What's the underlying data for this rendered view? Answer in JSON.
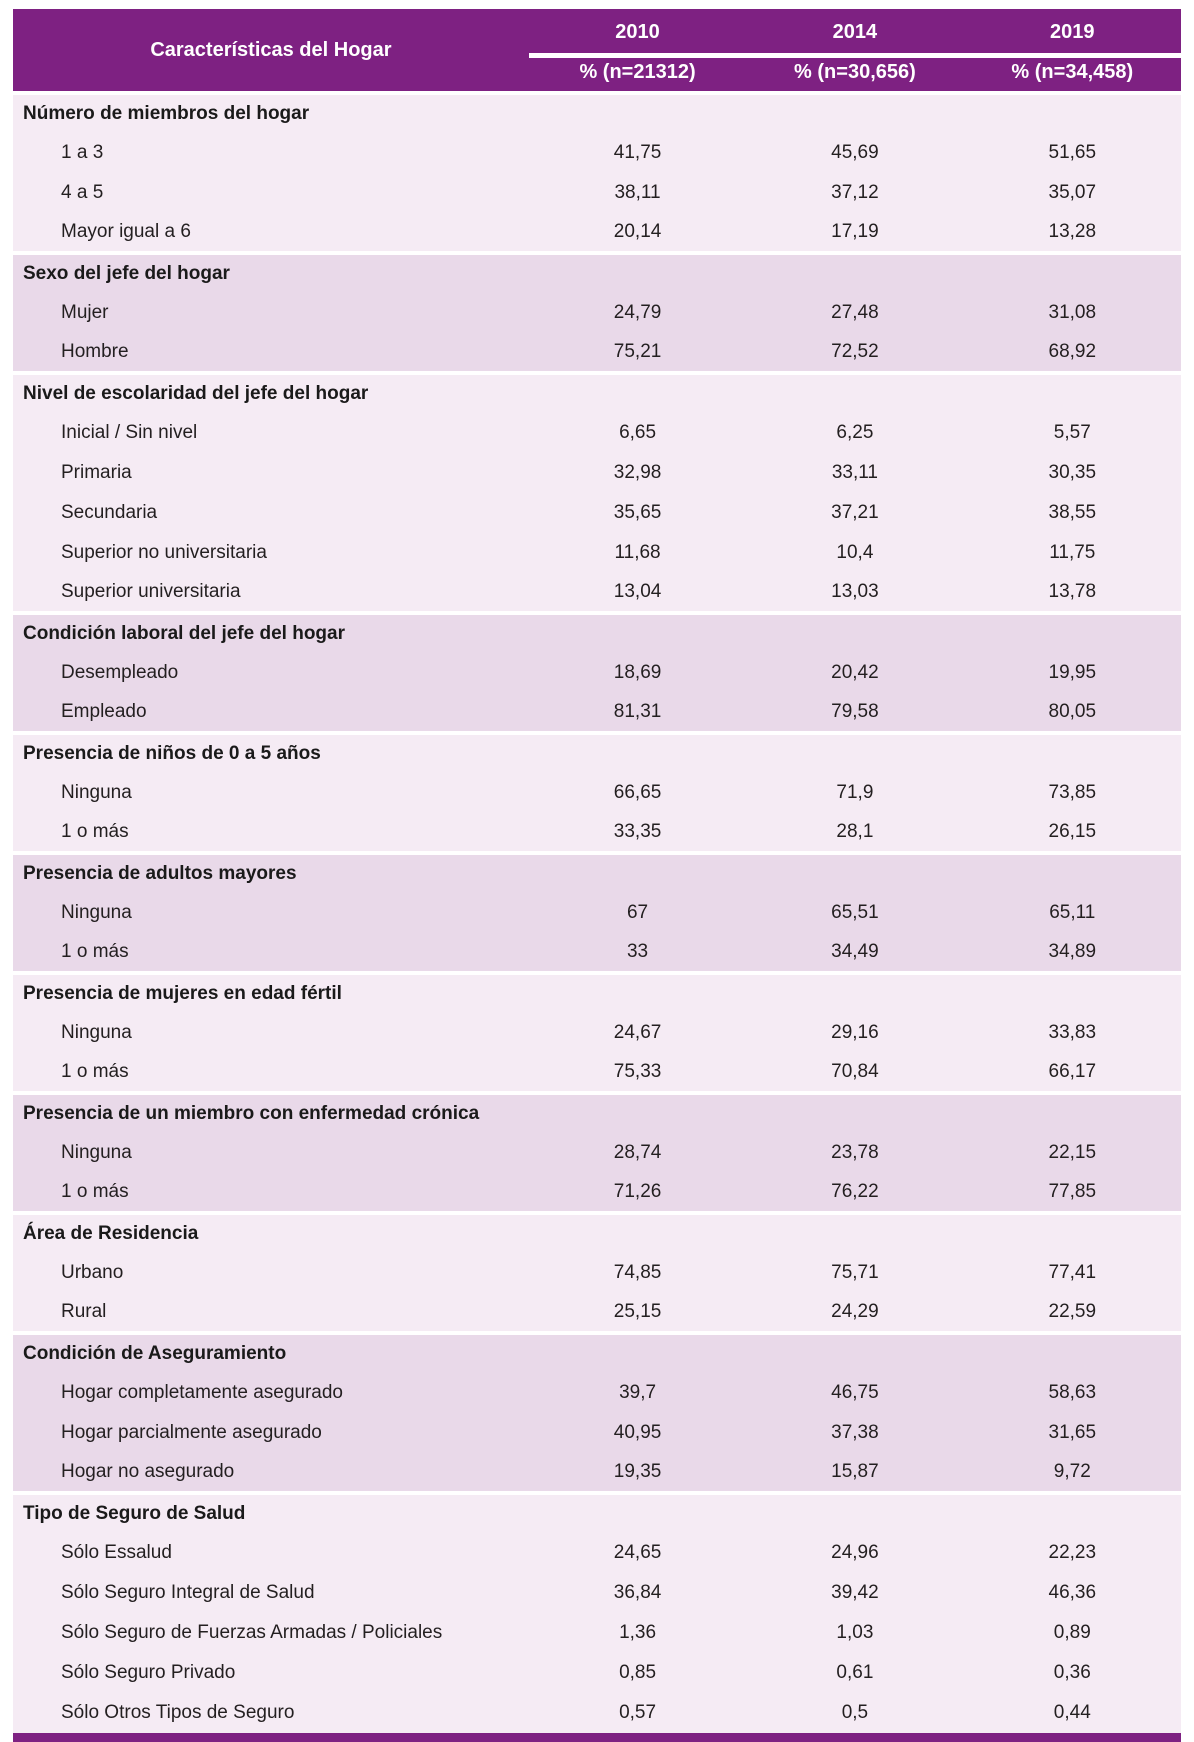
{
  "table": {
    "header": {
      "label": "Características del Hogar",
      "years": [
        "2010",
        "2014",
        "2019"
      ],
      "subheaders": [
        "% (n=21312)",
        "% (n=30,656)",
        "% (n=34,458)"
      ]
    },
    "sections": [
      {
        "title": "Número de miembros del hogar",
        "rows": [
          {
            "label": "1 a 3",
            "values": [
              "41,75",
              "45,69",
              "51,65"
            ]
          },
          {
            "label": "4 a 5",
            "values": [
              "38,11",
              "37,12",
              "35,07"
            ]
          },
          {
            "label": "Mayor igual a 6",
            "values": [
              "20,14",
              "17,19",
              "13,28"
            ]
          }
        ]
      },
      {
        "title": "Sexo del jefe del hogar",
        "rows": [
          {
            "label": "Mujer",
            "values": [
              "24,79",
              "27,48",
              "31,08"
            ]
          },
          {
            "label": "Hombre",
            "values": [
              "75,21",
              "72,52",
              "68,92"
            ]
          }
        ]
      },
      {
        "title": "Nivel de escolaridad del jefe del hogar",
        "rows": [
          {
            "label": "Inicial / Sin nivel",
            "values": [
              "6,65",
              "6,25",
              "5,57"
            ]
          },
          {
            "label": "Primaria",
            "values": [
              "32,98",
              "33,11",
              "30,35"
            ]
          },
          {
            "label": "Secundaria",
            "values": [
              "35,65",
              "37,21",
              "38,55"
            ]
          },
          {
            "label": "Superior no universitaria",
            "values": [
              "11,68",
              "10,4",
              "11,75"
            ]
          },
          {
            "label": "Superior universitaria",
            "values": [
              "13,04",
              "13,03",
              "13,78"
            ]
          }
        ]
      },
      {
        "title": "Condición laboral del jefe del hogar",
        "rows": [
          {
            "label": "Desempleado",
            "values": [
              "18,69",
              "20,42",
              "19,95"
            ]
          },
          {
            "label": "Empleado",
            "values": [
              "81,31",
              "79,58",
              "80,05"
            ]
          }
        ]
      },
      {
        "title": "Presencia de niños de 0 a 5 años",
        "rows": [
          {
            "label": "Ninguna",
            "values": [
              "66,65",
              "71,9",
              "73,85"
            ]
          },
          {
            "label": "1 o más",
            "values": [
              "33,35",
              "28,1",
              "26,15"
            ]
          }
        ]
      },
      {
        "title": "Presencia de adultos mayores",
        "rows": [
          {
            "label": "Ninguna",
            "values": [
              "67",
              "65,51",
              "65,11"
            ]
          },
          {
            "label": "1 o más",
            "values": [
              "33",
              "34,49",
              "34,89"
            ]
          }
        ]
      },
      {
        "title": "Presencia de mujeres en edad fértil",
        "rows": [
          {
            "label": "Ninguna",
            "values": [
              "24,67",
              "29,16",
              "33,83"
            ]
          },
          {
            "label": "1 o más",
            "values": [
              "75,33",
              "70,84",
              "66,17"
            ]
          }
        ]
      },
      {
        "title": "Presencia de un miembro con enfermedad crónica",
        "rows": [
          {
            "label": "Ninguna",
            "values": [
              "28,74",
              "23,78",
              "22,15"
            ]
          },
          {
            "label": "1 o más",
            "values": [
              "71,26",
              "76,22",
              "77,85"
            ]
          }
        ]
      },
      {
        "title": "Área de Residencia",
        "rows": [
          {
            "label": "Urbano",
            "values": [
              "74,85",
              "75,71",
              "77,41"
            ]
          },
          {
            "label": "Rural",
            "values": [
              "25,15",
              "24,29",
              "22,59"
            ]
          }
        ]
      },
      {
        "title": "Condición de Aseguramiento",
        "rows": [
          {
            "label": "Hogar completamente asegurado",
            "values": [
              "39,7",
              "46,75",
              "58,63"
            ]
          },
          {
            "label": "Hogar parcialmente asegurado",
            "values": [
              "40,95",
              "37,38",
              "31,65"
            ]
          },
          {
            "label": "Hogar no asegurado",
            "values": [
              "19,35",
              "15,87",
              "9,72"
            ]
          }
        ]
      },
      {
        "title": "Tipo de Seguro de Salud",
        "rows": [
          {
            "label": "Sólo Essalud",
            "values": [
              "24,65",
              "24,96",
              "22,23"
            ]
          },
          {
            "label": "Sólo Seguro Integral de Salud",
            "values": [
              "36,84",
              "39,42",
              "46,36"
            ]
          },
          {
            "label": "Sólo Seguro de Fuerzas Armadas / Policiales",
            "values": [
              "1,36",
              "1,03",
              "0,89"
            ]
          },
          {
            "label": "Sólo Seguro Privado",
            "values": [
              "0,85",
              "0,61",
              "0,36"
            ]
          },
          {
            "label": "Sólo Otros Tipos de Seguro",
            "values": [
              "0,57",
              "0,5",
              "0,44"
            ]
          }
        ]
      }
    ],
    "colors": {
      "header_bg": "#7e2182",
      "section_light": "#f5ebf4",
      "section_dark": "#e9d9e9",
      "separator": "#ffffff",
      "bottom_rule": "#7e2182",
      "header_text": "#ffffff",
      "body_text": "#231f20"
    }
  }
}
